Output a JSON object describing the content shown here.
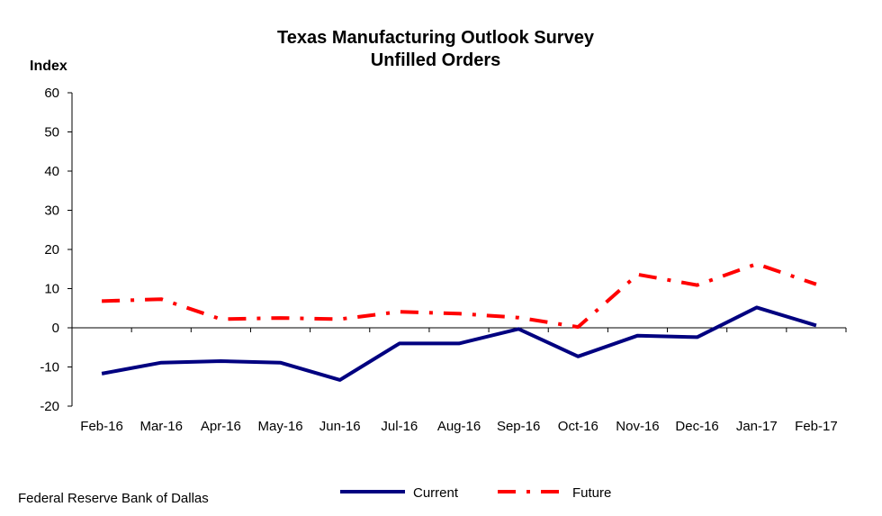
{
  "source": "Federal Reserve Bank of Dallas",
  "chart_data": {
    "type": "line",
    "title": "Texas Manufacturing Outlook Survey",
    "subtitle": "Unfilled Orders",
    "ylabel": "Index",
    "xlabel": "",
    "ylim": [
      -20,
      60
    ],
    "yticks": [
      -20,
      -10,
      0,
      10,
      20,
      30,
      40,
      50,
      60
    ],
    "grid": false,
    "legend_position": "bottom",
    "categories": [
      "Feb-16",
      "Mar-16",
      "Apr-16",
      "May-16",
      "Jun-16",
      "Jul-16",
      "Aug-16",
      "Sep-16",
      "Oct-16",
      "Nov-16",
      "Dec-16",
      "Jan-17",
      "Feb-17"
    ],
    "series": [
      {
        "name": "Current",
        "color": "#000080",
        "line_style": "solid",
        "values": [
          -11.7,
          -8.9,
          -8.5,
          -8.9,
          -13.3,
          -4.0,
          -4.0,
          -0.3,
          -7.3,
          -2.0,
          -2.4,
          5.2,
          0.6
        ]
      },
      {
        "name": "Future",
        "color": "#ff0000",
        "line_style": "dash-dot",
        "values": [
          6.8,
          7.3,
          2.2,
          2.5,
          2.2,
          4.1,
          3.6,
          2.6,
          0.2,
          13.6,
          10.9,
          16.3,
          11.1
        ]
      }
    ]
  }
}
